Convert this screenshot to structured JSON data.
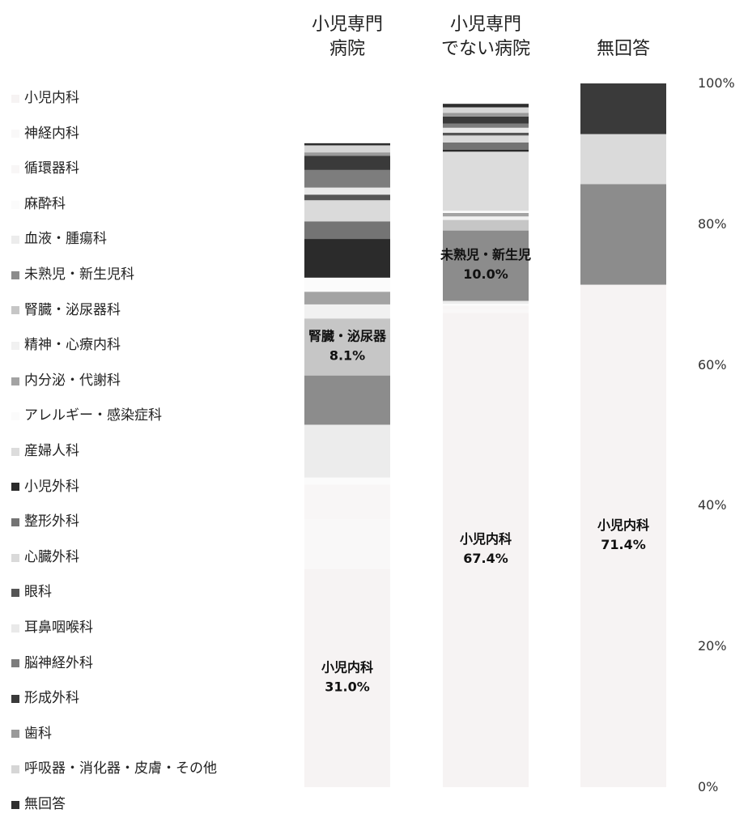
{
  "chart_data": {
    "type": "bar",
    "stacked": true,
    "ylim": [
      0,
      100
    ],
    "y_ticks": [
      "100%",
      "80%",
      "60%",
      "40%",
      "20%",
      "0%"
    ],
    "categories": [
      "小児専門\n病院",
      "小児専門\nでない病院",
      "無回答"
    ],
    "series": [
      {
        "name": "小児内科",
        "color": "#f6f3f3",
        "values": [
          31.0,
          67.4,
          71.4
        ]
      },
      {
        "name": "神経内科",
        "color": "#f9f8f8",
        "values": [
          7.0,
          0.5,
          0.0
        ]
      },
      {
        "name": "循環器科",
        "color": "#f8f6f6",
        "values": [
          5.0,
          0.5,
          0.0
        ]
      },
      {
        "name": "麻酔科",
        "color": "#fbfbfb",
        "values": [
          1.0,
          0.3,
          0.0
        ]
      },
      {
        "name": "血液・腫瘍科",
        "color": "#ececec",
        "values": [
          7.5,
          0.4,
          0.0
        ]
      },
      {
        "name": "未熟児・新生児科",
        "color": "#8c8c8c",
        "values": [
          7.0,
          10.0,
          14.3
        ]
      },
      {
        "name": "腎臓・泌尿器科",
        "color": "#c6c6c6",
        "values": [
          8.1,
          1.5,
          0.0
        ]
      },
      {
        "name": "精神・心療内科",
        "color": "#f1f1f1",
        "values": [
          2.0,
          0.5,
          0.0
        ]
      },
      {
        "name": "内分泌・代謝科",
        "color": "#a3a3a3",
        "values": [
          1.8,
          0.5,
          0.0
        ]
      },
      {
        "name": "アレルギー・感染症科",
        "color": "#fbfbfb",
        "values": [
          2.0,
          0.3,
          0.0
        ]
      },
      {
        "name": "産婦人科",
        "color": "#dcdcdc",
        "values": [
          0.0,
          8.4,
          0.0
        ]
      },
      {
        "name": "小児外科",
        "color": "#2b2b2b",
        "values": [
          5.5,
          0.3,
          0.0
        ]
      },
      {
        "name": "整形外科",
        "color": "#747474",
        "values": [
          2.5,
          1.0,
          0.0
        ]
      },
      {
        "name": "心臓外科",
        "color": "#dadada",
        "values": [
          3.0,
          1.0,
          7.1
        ]
      },
      {
        "name": "眼科",
        "color": "#555555",
        "values": [
          0.8,
          0.4,
          0.0
        ]
      },
      {
        "name": "耳鼻咽喉科",
        "color": "#e9e9e9",
        "values": [
          1.0,
          0.7,
          0.0
        ]
      },
      {
        "name": "脳神経外科",
        "color": "#7d7d7d",
        "values": [
          2.5,
          0.6,
          0.0
        ]
      },
      {
        "name": "形成外科",
        "color": "#3a3a3a",
        "values": [
          2.0,
          1.0,
          7.2
        ]
      },
      {
        "name": "歯科",
        "color": "#9a9a9a",
        "values": [
          0.5,
          0.5,
          0.0
        ]
      },
      {
        "name": "呼吸器・消化器・皮膚・その他",
        "color": "#d6d6d6",
        "values": [
          1.0,
          0.8,
          0.0
        ]
      },
      {
        "name": "無回答",
        "color": "#2e2e2e",
        "values": [
          0.3,
          0.5,
          0.0
        ]
      }
    ],
    "annotations": [
      {
        "bar": 0,
        "lines": [
          "小児内科",
          "31.0%"
        ]
      },
      {
        "bar": 0,
        "lines": [
          "腎臓・泌尿器",
          "8.1%"
        ]
      },
      {
        "bar": 1,
        "lines": [
          "小児内科",
          "67.4%"
        ]
      },
      {
        "bar": 1,
        "lines": [
          "未熟児・新生児",
          "10.0%"
        ]
      },
      {
        "bar": 2,
        "lines": [
          "小児内科",
          "71.4%"
        ]
      }
    ],
    "legend_position": "left"
  }
}
